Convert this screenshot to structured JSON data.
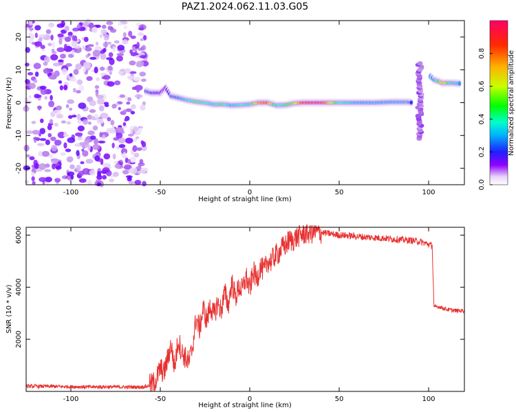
{
  "figure": {
    "title": "PAZ1.2024.062.11.03.G05"
  },
  "colors": {
    "snr_line": "#e83030",
    "axis": "#000000",
    "colormap": [
      "#ffffff",
      "#e6d2f7",
      "#b57ce8",
      "#7a00ff",
      "#2020ff",
      "#00b0ff",
      "#00ffcc",
      "#00ff00",
      "#c8ff00",
      "#ffb000",
      "#ff2a00",
      "#ff0066"
    ]
  },
  "chart_data": [
    {
      "type": "heatmap",
      "xlabel": "Height of straight line (km)",
      "ylabel": "Frequency (Hz)",
      "xlim": [
        -125,
        120
      ],
      "ylim": [
        -25,
        25
      ],
      "xticks": [
        -100,
        -50,
        0,
        50,
        100
      ],
      "xtick_labels": [
        "-100",
        "-50",
        "0",
        "50",
        "100"
      ],
      "yticks": [
        -20,
        -10,
        0,
        10,
        20
      ],
      "ytick_labels": [
        "-20",
        "-10",
        "0",
        "10",
        "20"
      ],
      "grid": false,
      "colorbar": {
        "label": "Normalized spectral amplitude",
        "range": [
          0,
          1
        ],
        "ticks": [
          0.0,
          0.2,
          0.4,
          0.6,
          0.8
        ],
        "tick_labels": [
          "0.0",
          "0.2",
          "0.4",
          "0.6",
          "0.8"
        ]
      },
      "noise_region": {
        "x_range": [
          -125,
          -58
        ],
        "freq_range": [
          -25,
          25
        ],
        "amplitude_range": [
          0.05,
          0.3
        ]
      },
      "ridge": [
        {
          "x": -58,
          "freq": 3.5,
          "amp": 0.4
        },
        {
          "x": -55,
          "freq": 3.0,
          "amp": 0.35
        },
        {
          "x": -50,
          "freq": 3.0,
          "amp": 0.3
        },
        {
          "x": -47,
          "freq": 4.5,
          "amp": 0.25
        },
        {
          "x": -44,
          "freq": 2.0,
          "amp": 0.4
        },
        {
          "x": -40,
          "freq": 1.5,
          "amp": 0.4
        },
        {
          "x": -35,
          "freq": 0.8,
          "amp": 0.5
        },
        {
          "x": -30,
          "freq": 0.3,
          "amp": 0.6
        },
        {
          "x": -25,
          "freq": 0.0,
          "amp": 0.55
        },
        {
          "x": -20,
          "freq": -0.5,
          "amp": 0.5
        },
        {
          "x": -15,
          "freq": -0.5,
          "amp": 0.6
        },
        {
          "x": -10,
          "freq": -0.8,
          "amp": 0.45
        },
        {
          "x": -5,
          "freq": -0.7,
          "amp": 0.55
        },
        {
          "x": 0,
          "freq": -0.5,
          "amp": 0.5
        },
        {
          "x": 5,
          "freq": 0.0,
          "amp": 0.85
        },
        {
          "x": 10,
          "freq": 0.0,
          "amp": 0.9
        },
        {
          "x": 15,
          "freq": -0.8,
          "amp": 0.5
        },
        {
          "x": 20,
          "freq": -0.7,
          "amp": 0.6
        },
        {
          "x": 25,
          "freq": -0.2,
          "amp": 0.7
        },
        {
          "x": 30,
          "freq": 0.0,
          "amp": 0.95
        },
        {
          "x": 40,
          "freq": 0.0,
          "amp": 1.0
        },
        {
          "x": 50,
          "freq": 0.0,
          "amp": 0.55
        },
        {
          "x": 60,
          "freq": 0.0,
          "amp": 0.45
        },
        {
          "x": 70,
          "freq": 0.0,
          "amp": 0.45
        },
        {
          "x": 80,
          "freq": 0.2,
          "amp": 0.45
        },
        {
          "x": 88,
          "freq": 0.2,
          "amp": 0.45
        },
        {
          "x": 91,
          "freq": 0.0,
          "amp": 0.35
        }
      ],
      "vertical_streak": {
        "x": 95,
        "freq_range": [
          -11,
          12
        ],
        "amp": 0.2
      },
      "upper_ridge": [
        {
          "x": 101,
          "freq": 8.0,
          "amp": 0.5
        },
        {
          "x": 103,
          "freq": 7.0,
          "amp": 0.45
        },
        {
          "x": 108,
          "freq": 6.0,
          "amp": 0.8
        },
        {
          "x": 113,
          "freq": 6.0,
          "amp": 0.5
        },
        {
          "x": 118,
          "freq": 5.8,
          "amp": 0.45
        }
      ]
    },
    {
      "type": "line",
      "xlabel": "Height of straight line (km)",
      "ylabel": "SNR (10 * v/v)",
      "xlim": [
        -125,
        120
      ],
      "ylim": [
        0,
        6300
      ],
      "xticks": [
        -100,
        -50,
        0,
        50,
        100
      ],
      "xtick_labels": [
        "-100",
        "-50",
        "0",
        "50",
        "100"
      ],
      "yticks": [
        2000,
        4000,
        6000
      ],
      "ytick_labels": [
        "2000",
        "4000",
        "6000"
      ],
      "grid": false,
      "series": [
        {
          "x": [
            -125,
            -110,
            -100,
            -90,
            -80,
            -70,
            -60,
            -57,
            -54,
            -52,
            -50,
            -48,
            -46,
            -44,
            -42,
            -40,
            -38,
            -36,
            -34,
            -32,
            -30,
            -28,
            -26,
            -24,
            -22,
            -20,
            -18,
            -16,
            -14,
            -12,
            -10,
            -8,
            -6,
            -4,
            -2,
            0,
            2,
            4,
            6,
            8,
            10,
            12,
            14,
            16,
            18,
            20,
            22,
            24,
            26,
            28,
            30,
            32,
            35,
            40,
            45,
            50,
            55,
            60,
            65,
            70,
            75,
            80,
            85,
            90,
            95,
            100,
            102,
            103,
            104,
            106,
            110,
            115,
            120
          ],
          "y": [
            200,
            190,
            180,
            170,
            175,
            165,
            170,
            200,
            300,
            500,
            900,
            700,
            1200,
            1800,
            900,
            2000,
            1500,
            1300,
            1100,
            1700,
            2800,
            2400,
            3200,
            2700,
            3300,
            2900,
            3400,
            3100,
            3800,
            3300,
            4200,
            3600,
            4000,
            3900,
            4400,
            3900,
            4600,
            4300,
            4800,
            4600,
            5000,
            5000,
            5200,
            5300,
            5500,
            5600,
            5800,
            5800,
            5900,
            6000,
            6050,
            6080,
            6100,
            6100,
            6050,
            6000,
            5980,
            5950,
            5920,
            5900,
            5880,
            5850,
            5820,
            5800,
            5750,
            5650,
            5600,
            3200,
            3250,
            3250,
            3150,
            3100,
            3100
          ]
        }
      ]
    }
  ]
}
